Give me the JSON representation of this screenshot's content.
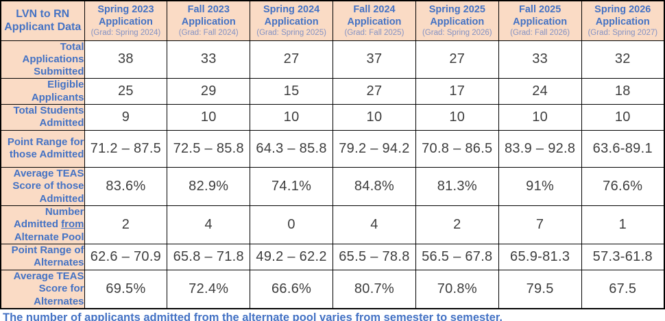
{
  "colors": {
    "header_bg": "#fadbc5",
    "label_blue": "#4472c4",
    "grad_blue": "#8391c3",
    "value_text": "#3d3d3d",
    "border": "#000000"
  },
  "chart_data": {
    "type": "table",
    "title": "LVN to RN Applicant Data",
    "columns": [
      {
        "title": "Spring 2023 Application",
        "grad": "(Grad: Spring 2024)"
      },
      {
        "title": "Fall 2023 Application",
        "grad": "(Grad: Fall 2024)"
      },
      {
        "title": "Spring 2024 Application",
        "grad": "(Grad: Spring 2025)"
      },
      {
        "title": "Fall 2024 Application",
        "grad": "(Grad: Fall 2025)"
      },
      {
        "title": "Spring 2025 Application",
        "grad": "(Grad: Spring 2026)"
      },
      {
        "title": "Fall 2025 Application",
        "grad": "(Grad: Fall 2026)"
      },
      {
        "title": "Spring 2026 Application",
        "grad": "(Grad: Spring 2027)"
      }
    ],
    "rows": [
      {
        "label": "Total Applications Submitted",
        "values": [
          "38",
          "33",
          "27",
          "37",
          "27",
          "33",
          "32"
        ]
      },
      {
        "label": "Eligible Applicants",
        "values": [
          "25",
          "29",
          "15",
          "27",
          "17",
          "24",
          "18"
        ]
      },
      {
        "label": "Total Students Admitted",
        "values": [
          "9",
          "10",
          "10",
          "10",
          "10",
          "10",
          "10"
        ]
      },
      {
        "label": "Point Range for those Admitted",
        "values": [
          "71.2 – 87.5",
          "72.5 – 85.8",
          "64.3 – 85.8",
          "79.2 – 94.2",
          "70.8 – 86.5",
          "83.9 – 92.8",
          "63.6-89.1"
        ]
      },
      {
        "label": "Average TEAS Score of those Admitted",
        "values": [
          "83.6%",
          "82.9%",
          "74.1%",
          "84.8%",
          "81.3%",
          "91%",
          "76.6%"
        ]
      },
      {
        "label": "Number Admitted from Alternate Pool",
        "underline_word": "from",
        "values": [
          "2",
          "4",
          "0",
          "4",
          "2",
          "7",
          "1"
        ]
      },
      {
        "label": "Point Range of Alternates",
        "values": [
          "62.6 – 70.9",
          "65.8 – 71.8",
          "49.2 – 62.2",
          "65.5 – 78.8",
          "56.5 – 67.8",
          "65.9-81.3",
          "57.3-61.8"
        ]
      },
      {
        "label": "Average TEAS Score for Alternates",
        "values": [
          "69.5%",
          "72.4%",
          "66.6%",
          "80.7%",
          "70.8%",
          "79.5",
          "67.5"
        ]
      }
    ],
    "note": "The number of applicants admitted from the alternate pool varies from semester to semester."
  }
}
